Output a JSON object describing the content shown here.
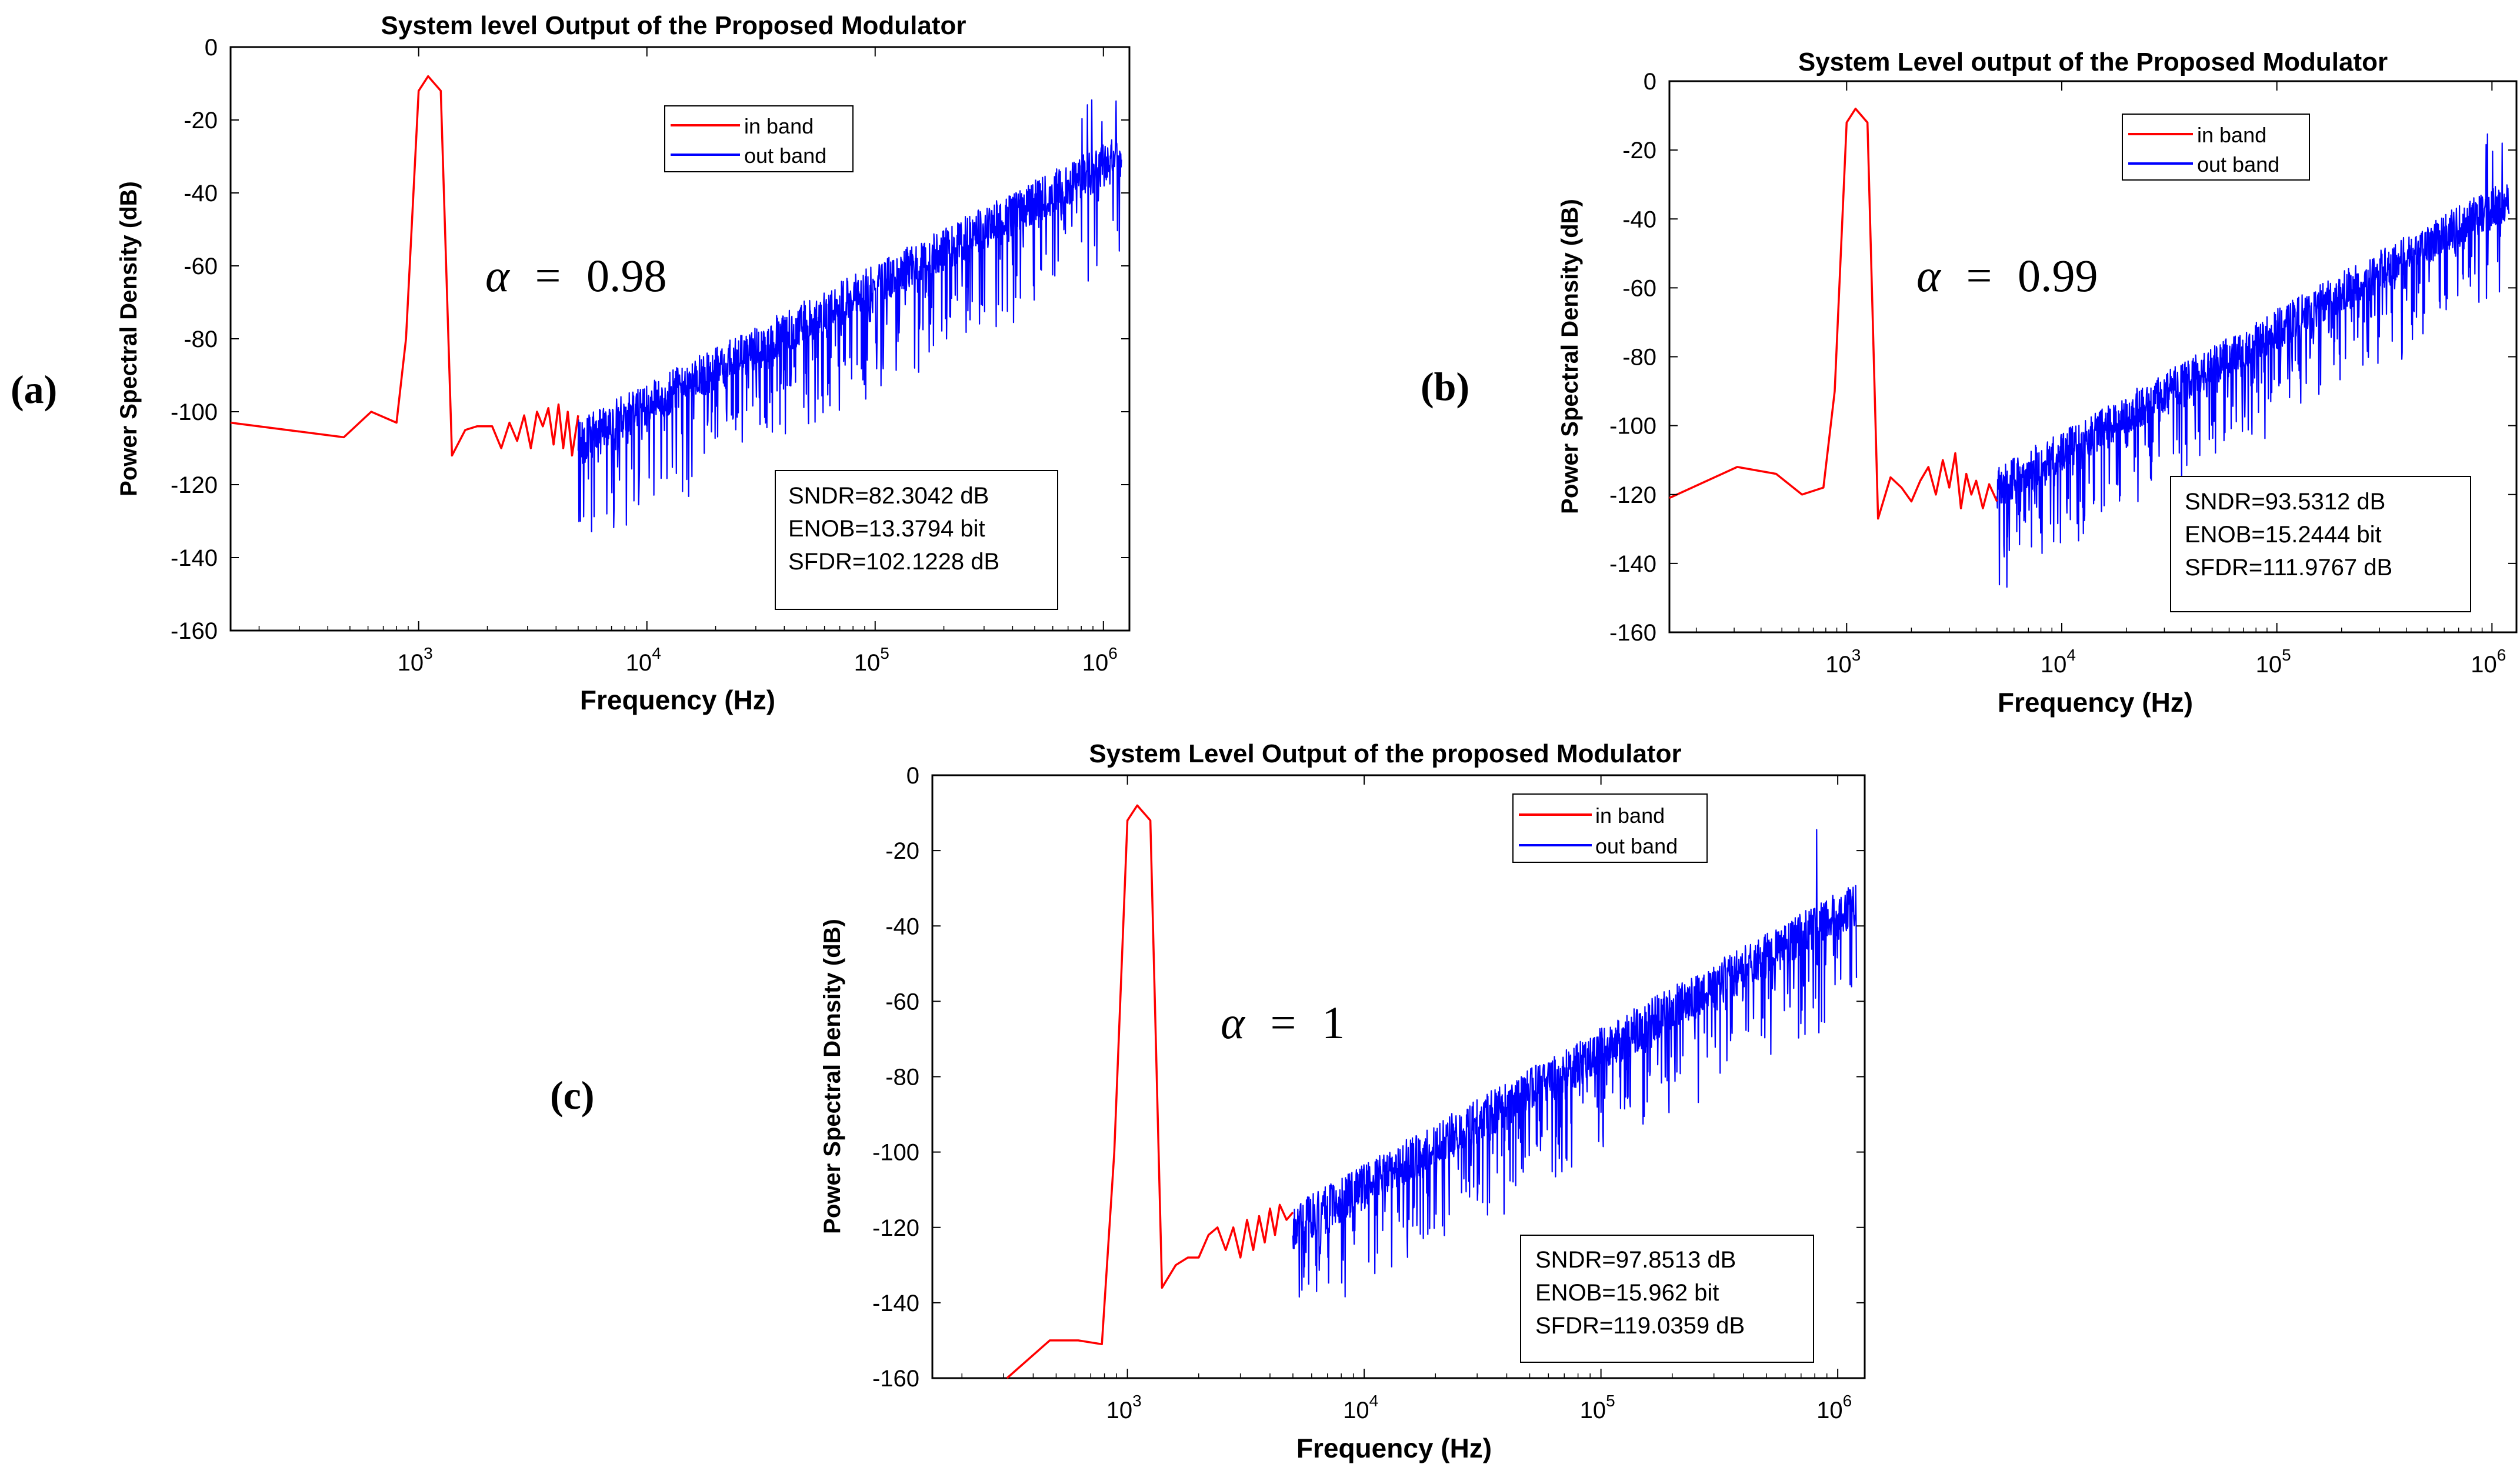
{
  "colors": {
    "in_band": "#ff0000",
    "out_band": "#0000ff",
    "axis": "#000000",
    "background": "#ffffff"
  },
  "chart_data": [
    {
      "panel_label": "(a)",
      "type": "line",
      "title": "System level Output of the Proposed Modulator",
      "xlabel": "Frequency (Hz)",
      "ylabel": "Power Spectral Density (dB)",
      "xscale": "log",
      "xlim": [
        150,
        1300000
      ],
      "ylim": [
        -160,
        0
      ],
      "yticks": [
        "0",
        "-20",
        "-40",
        "-60",
        "-80",
        "-100",
        "-120",
        "-140",
        "-160"
      ],
      "xticks": [
        {
          "base": "10",
          "exp": "3"
        },
        {
          "base": "10",
          "exp": "4"
        },
        {
          "base": "10",
          "exp": "5"
        },
        {
          "base": "10",
          "exp": "6"
        }
      ],
      "legend": {
        "position": "top-right",
        "entries": [
          "in band",
          "out band"
        ]
      },
      "annotation": {
        "alpha_symbol": "α",
        "equals": "=",
        "value": "0.98"
      },
      "metrics": [
        "SNDR=82.3042 dB",
        "ENOB=13.3794 bit",
        "SFDR=102.1228 dB"
      ],
      "series": [
        {
          "name": "in band",
          "x": [
            150,
            470,
            620,
            800,
            880,
            1000,
            1100,
            1250,
            1400,
            1600,
            1800,
            2100,
            2300,
            2500,
            2700,
            2900,
            3100,
            3300,
            3500,
            3700,
            3900,
            4100,
            4300,
            4500,
            4700,
            5000
          ],
          "y": [
            -103,
            -107,
            -100,
            -103,
            -80,
            -12,
            -8,
            -12,
            -112,
            -105,
            -104,
            -104,
            -110,
            -103,
            -108,
            -101,
            -110,
            -100,
            -104,
            -99,
            -109,
            -98,
            -110,
            -100,
            -112,
            -101
          ]
        },
        {
          "name": "out band",
          "model": "noise_floor",
          "f_start": 5000,
          "f_end": 1200000,
          "floor_start": -108,
          "floor_end": -30,
          "ripple_db": 12,
          "dip_db": 28,
          "spur_f": 780000,
          "spur_db": -17
        }
      ]
    },
    {
      "panel_label": "(b)",
      "type": "line",
      "title": "System Level output of the Proposed Modulator",
      "xlabel": "Frequency (Hz)",
      "ylabel": "Power Spectral Density (dB)",
      "xscale": "log",
      "xlim": [
        150,
        1300000
      ],
      "ylim": [
        -160,
        0
      ],
      "yticks": [
        "0",
        "-20",
        "-40",
        "-60",
        "-80",
        "-100",
        "-120",
        "-140",
        "-160"
      ],
      "xticks": [
        {
          "base": "10",
          "exp": "3"
        },
        {
          "base": "10",
          "exp": "4"
        },
        {
          "base": "10",
          "exp": "5"
        },
        {
          "base": "10",
          "exp": "6"
        }
      ],
      "legend": {
        "position": "top-right",
        "entries": [
          "in band",
          "out band"
        ]
      },
      "annotation": {
        "alpha_symbol": "α",
        "equals": "=",
        "value": "0.99"
      },
      "metrics": [
        "SNDR=93.5312 dB",
        "ENOB=15.2444 bit",
        "SFDR=111.9767 dB"
      ],
      "series": [
        {
          "name": "in band",
          "x": [
            150,
            310,
            470,
            620,
            780,
            880,
            1000,
            1100,
            1250,
            1400,
            1600,
            1800,
            2000,
            2200,
            2400,
            2600,
            2800,
            3000,
            3200,
            3400,
            3600,
            3800,
            4000,
            4300,
            4600,
            5000
          ],
          "y": [
            -121,
            -112,
            -114,
            -120,
            -118,
            -90,
            -12,
            -8,
            -12,
            -127,
            -115,
            -118,
            -122,
            -116,
            -112,
            -120,
            -110,
            -118,
            -108,
            -124,
            -114,
            -120,
            -116,
            -124,
            -117,
            -122
          ]
        },
        {
          "name": "out band",
          "model": "noise_floor",
          "f_start": 5000,
          "f_end": 1200000,
          "floor_start": -118,
          "floor_end": -34,
          "ripple_db": 12,
          "dip_db": 26,
          "spur_f": 780000,
          "spur_db": -17
        }
      ]
    },
    {
      "panel_label": "(c)",
      "type": "line",
      "title": "System Level Output of the proposed Modulator",
      "xlabel": "Frequency (Hz)",
      "ylabel": "Power Spectral Density (dB)",
      "xscale": "log",
      "xlim": [
        150,
        1300000
      ],
      "ylim": [
        -160,
        0
      ],
      "yticks": [
        "0",
        "-20",
        "-40",
        "-60",
        "-80",
        "-100",
        "-120",
        "-140",
        "-160"
      ],
      "xticks": [
        {
          "base": "10",
          "exp": "3"
        },
        {
          "base": "10",
          "exp": "4"
        },
        {
          "base": "10",
          "exp": "5"
        },
        {
          "base": "10",
          "exp": "6"
        }
      ],
      "legend": {
        "position": "top-right",
        "entries": [
          "in band",
          "out band"
        ]
      },
      "annotation": {
        "alpha_symbol": "α",
        "equals": "=",
        "value": "1"
      },
      "metrics": [
        "SNDR=97.8513 dB",
        "ENOB=15.962 bit",
        "SFDR=119.0359 dB"
      ],
      "series": [
        {
          "name": "in band",
          "x": [
            310,
            470,
            620,
            780,
            880,
            1000,
            1100,
            1250,
            1400,
            1600,
            1800,
            2000,
            2200,
            2400,
            2600,
            2800,
            3000,
            3200,
            3400,
            3600,
            3800,
            4000,
            4200,
            4400,
            4700,
            5000
          ],
          "y": [
            -160,
            -150,
            -150,
            -151,
            -100,
            -12,
            -8,
            -12,
            -136,
            -130,
            -128,
            -128,
            -122,
            -120,
            -126,
            -120,
            -128,
            -118,
            -126,
            -117,
            -124,
            -115,
            -122,
            -114,
            -118,
            -116
          ]
        },
        {
          "name": "out band",
          "model": "noise_floor",
          "f_start": 5000,
          "f_end": 1200000,
          "floor_start": -120,
          "floor_end": -34,
          "ripple_db": 12,
          "dip_db": 24,
          "spur_f": 780000,
          "spur_db": -17
        }
      ]
    }
  ]
}
